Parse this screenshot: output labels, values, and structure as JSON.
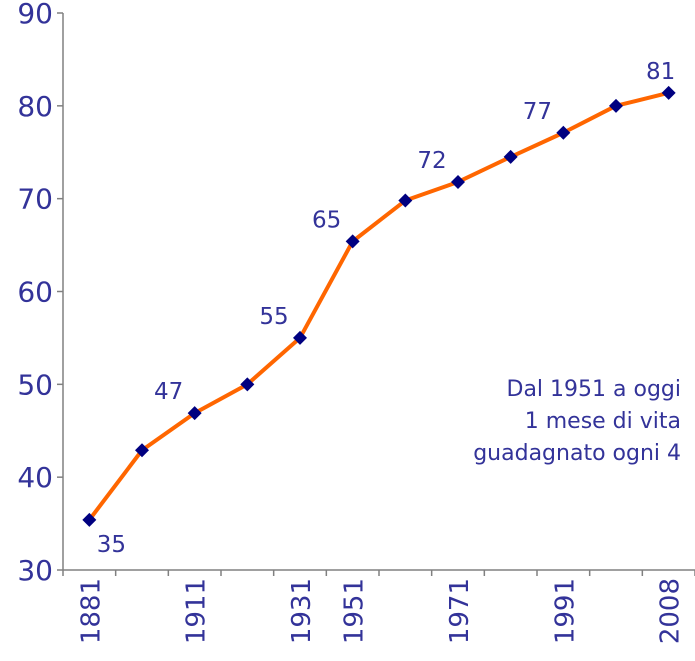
{
  "chart_data": {
    "type": "line",
    "categories": [
      "1881",
      null,
      "1911",
      null,
      "1931",
      "1951",
      null,
      "1971",
      null,
      "1991",
      null,
      "2008"
    ],
    "series": [
      {
        "color": "#ff6600",
        "marker_color": "#000080",
        "values": [
          35.4,
          42.9,
          46.9,
          50,
          55,
          65.4,
          69.8,
          71.8,
          74.5,
          77.1,
          80,
          81.4
        ],
        "value_labels": [
          "35",
          null,
          "47",
          null,
          "55",
          "65",
          null,
          "72",
          null,
          "77",
          null,
          "81"
        ]
      }
    ],
    "ylim": [
      30,
      90
    ],
    "yticks": [
      30,
      40,
      50,
      60,
      70,
      80,
      90
    ],
    "annotation": [
      "Dal 1951 a oggi",
      "1 mese di vita",
      "guadagnato ogni 4"
    ]
  }
}
